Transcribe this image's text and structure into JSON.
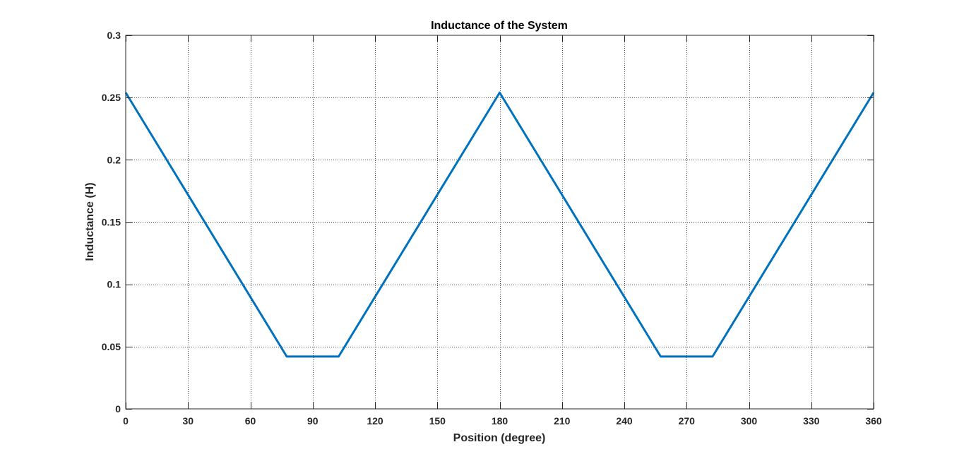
{
  "chart_data": {
    "type": "line",
    "title": "Inductance of the System",
    "xlabel": "Position (degree)",
    "ylabel": "Inductance (H)",
    "xlim": [
      0,
      360
    ],
    "ylim": [
      0,
      0.3
    ],
    "xticks": [
      0,
      30,
      60,
      90,
      120,
      150,
      180,
      210,
      240,
      270,
      300,
      330,
      360
    ],
    "xtick_labels": [
      "0",
      "30",
      "60",
      "90",
      "120",
      "150",
      "180",
      "210",
      "240",
      "270",
      "300",
      "330",
      "360"
    ],
    "yticks": [
      0,
      0.05,
      0.1,
      0.15,
      0.2,
      0.25,
      0.3
    ],
    "ytick_labels": [
      "0",
      "0.05",
      "0.1",
      "0.15",
      "0.2",
      "0.25",
      "0.3"
    ],
    "grid": true,
    "grid_style": "dotted",
    "series": [
      {
        "color": "#0072BD",
        "x": [
          0,
          77.5,
          102.5,
          180,
          257.5,
          282.5,
          360
        ],
        "y": [
          0.254,
          0.042,
          0.042,
          0.254,
          0.042,
          0.042,
          0.254
        ]
      }
    ]
  }
}
